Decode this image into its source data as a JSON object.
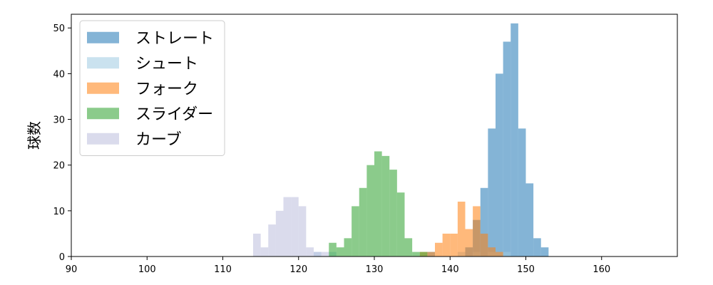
{
  "chart_data": {
    "type": "histogram",
    "xlim": [
      90,
      170
    ],
    "ylim": [
      0,
      53
    ],
    "xticks": [
      90,
      100,
      110,
      120,
      130,
      140,
      150,
      160
    ],
    "yticks": [
      0,
      10,
      20,
      30,
      40,
      50
    ],
    "xlabel": "",
    "ylabel": "球数",
    "legend_position": "upper-left",
    "grid": false,
    "bin_width": 1,
    "series": [
      {
        "name": "ストレート",
        "color": "#1f77b4",
        "bins": [
          [
            137,
            1
          ],
          [
            142,
            2
          ],
          [
            143,
            8
          ],
          [
            144,
            15
          ],
          [
            145,
            28
          ],
          [
            146,
            40
          ],
          [
            147,
            47
          ],
          [
            148,
            51
          ],
          [
            149,
            28
          ],
          [
            150,
            16
          ],
          [
            151,
            4
          ],
          [
            152,
            2
          ]
        ]
      },
      {
        "name": "シュート",
        "color": "#9ecae1",
        "bins": [
          [
            122,
            1
          ],
          [
            124,
            1
          ],
          [
            137,
            1
          ],
          [
            141,
            1
          ],
          [
            143,
            1
          ],
          [
            145,
            1
          ],
          [
            146,
            1
          ],
          [
            147,
            1
          ]
        ]
      },
      {
        "name": "フォーク",
        "color": "#ff7f0e",
        "bins": [
          [
            136,
            1
          ],
          [
            137,
            1
          ],
          [
            138,
            3
          ],
          [
            139,
            5
          ],
          [
            140,
            5
          ],
          [
            141,
            12
          ],
          [
            142,
            6
          ],
          [
            143,
            11
          ],
          [
            144,
            5
          ],
          [
            145,
            2
          ],
          [
            146,
            1
          ]
        ]
      },
      {
        "name": "スライダー",
        "color": "#2ca02c",
        "bins": [
          [
            124,
            3
          ],
          [
            125,
            2
          ],
          [
            126,
            4
          ],
          [
            127,
            11
          ],
          [
            128,
            15
          ],
          [
            129,
            20
          ],
          [
            130,
            23
          ],
          [
            131,
            22
          ],
          [
            132,
            19
          ],
          [
            133,
            14
          ],
          [
            134,
            4
          ],
          [
            135,
            1
          ],
          [
            136,
            1
          ]
        ]
      },
      {
        "name": "カーブ",
        "color": "#bcbddc",
        "bins": [
          [
            114,
            5
          ],
          [
            115,
            2
          ],
          [
            116,
            7
          ],
          [
            117,
            10
          ],
          [
            118,
            13
          ],
          [
            119,
            13
          ],
          [
            120,
            11
          ],
          [
            121,
            2
          ],
          [
            122,
            1
          ],
          [
            123,
            1
          ]
        ]
      }
    ]
  }
}
